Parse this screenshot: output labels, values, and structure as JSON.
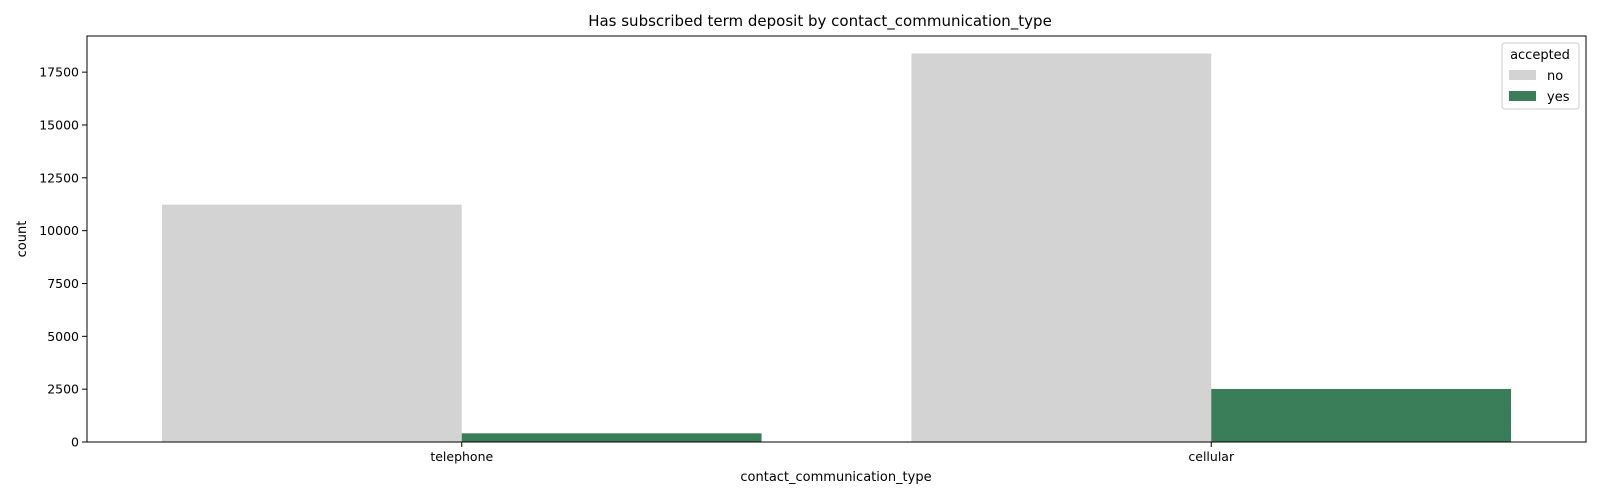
{
  "chart_data": {
    "type": "bar",
    "title": "Has subscribed term deposit by contact_communication_type",
    "xlabel": "contact_communication_type",
    "ylabel": "count",
    "categories": [
      "telephone",
      "cellular"
    ],
    "series": [
      {
        "name": "no",
        "values": [
          11230,
          18380
        ],
        "color": "#d3d3d3"
      },
      {
        "name": "yes",
        "values": [
          410,
          2510
        ],
        "color": "#3a7d59"
      }
    ],
    "ylim": [
      0,
      19210
    ],
    "yticks": [
      0,
      2500,
      5000,
      7500,
      10000,
      12500,
      15000,
      17500
    ],
    "grid": false,
    "legend": {
      "title": "accepted",
      "placement": "top-right"
    }
  }
}
